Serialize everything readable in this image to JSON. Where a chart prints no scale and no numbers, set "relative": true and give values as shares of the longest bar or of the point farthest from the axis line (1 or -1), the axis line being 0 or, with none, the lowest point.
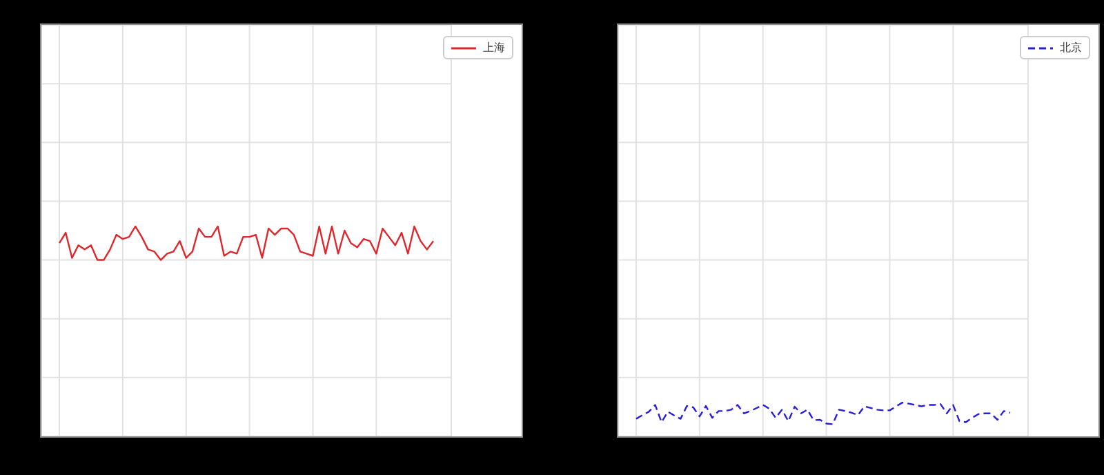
{
  "chart_data": [
    {
      "type": "line",
      "relative": true,
      "categories": [
        null,
        null,
        null,
        null,
        null,
        null,
        null,
        null,
        null,
        null,
        null,
        null,
        null,
        null,
        null,
        null,
        null,
        null,
        null,
        null,
        null,
        null,
        null,
        null,
        null,
        null,
        null,
        null,
        null,
        null,
        null,
        null,
        null,
        null,
        null,
        null,
        null,
        null,
        null,
        null,
        null,
        null,
        null,
        null,
        null,
        null,
        null,
        null,
        null,
        null,
        null,
        null,
        null,
        null,
        null,
        null,
        null,
        null,
        null,
        null
      ],
      "grid": true,
      "legend": "top right",
      "line_style": "solid",
      "marker": "none",
      "series": [
        {
          "name": "上海",
          "color": "#e0262b",
          "values": [
            0.92,
            0.97,
            0.85,
            0.91,
            0.89,
            0.91,
            0.84,
            0.84,
            0.89,
            0.96,
            0.94,
            0.95,
            1,
            0.95,
            0.89,
            0.88,
            0.84,
            0.87,
            0.88,
            0.93,
            0.85,
            0.88,
            0.99,
            0.95,
            0.95,
            1,
            0.86,
            0.88,
            0.87,
            0.95,
            0.95,
            0.96,
            0.85,
            0.99,
            0.96,
            0.99,
            0.99,
            0.96,
            0.88,
            0.87,
            0.86,
            1,
            0.87,
            1,
            0.87,
            0.98,
            0.92,
            0.9,
            0.94,
            0.93,
            0.87,
            0.99,
            0.95,
            0.91,
            0.97,
            0.87,
            1,
            0.93,
            0.89,
            0.93
          ]
        }
      ]
    },
    {
      "type": "line",
      "relative": true,
      "categories": [
        null,
        null,
        null,
        null,
        null,
        null,
        null,
        null,
        null,
        null,
        null,
        null,
        null,
        null,
        null,
        null,
        null,
        null,
        null,
        null,
        null,
        null,
        null,
        null,
        null,
        null,
        null,
        null,
        null,
        null,
        null,
        null,
        null,
        null,
        null,
        null,
        null,
        null,
        null,
        null,
        null,
        null,
        null,
        null,
        null,
        null,
        null,
        null,
        null,
        null,
        null,
        null,
        null,
        null,
        null,
        null,
        null,
        null,
        null,
        null
      ],
      "grid": true,
      "legend": "top right",
      "line_style": "dashed",
      "marker": "none",
      "series": [
        {
          "name": "北京",
          "color": "#2a1fd6",
          "values": [
            0.52,
            0.63,
            0.73,
            0.93,
            0.42,
            0.73,
            0.62,
            0.52,
            0.9,
            0.86,
            0.59,
            0.9,
            0.55,
            0.75,
            0.75,
            0.79,
            0.93,
            0.68,
            0.75,
            0.84,
            0.93,
            0.82,
            0.55,
            0.79,
            0.45,
            0.88,
            0.68,
            0.79,
            0.48,
            0.49,
            0.38,
            0.36,
            0.79,
            0.75,
            0.7,
            0.63,
            0.89,
            0.84,
            0.79,
            0.77,
            0.77,
            0.89,
            1,
            0.97,
            0.93,
            0.89,
            0.93,
            0.93,
            0.96,
            0.68,
            0.93,
            0.45,
            0.42,
            0.55,
            0.66,
            0.68,
            0.68,
            0.49,
            0.75,
            0.7
          ]
        }
      ]
    }
  ]
}
